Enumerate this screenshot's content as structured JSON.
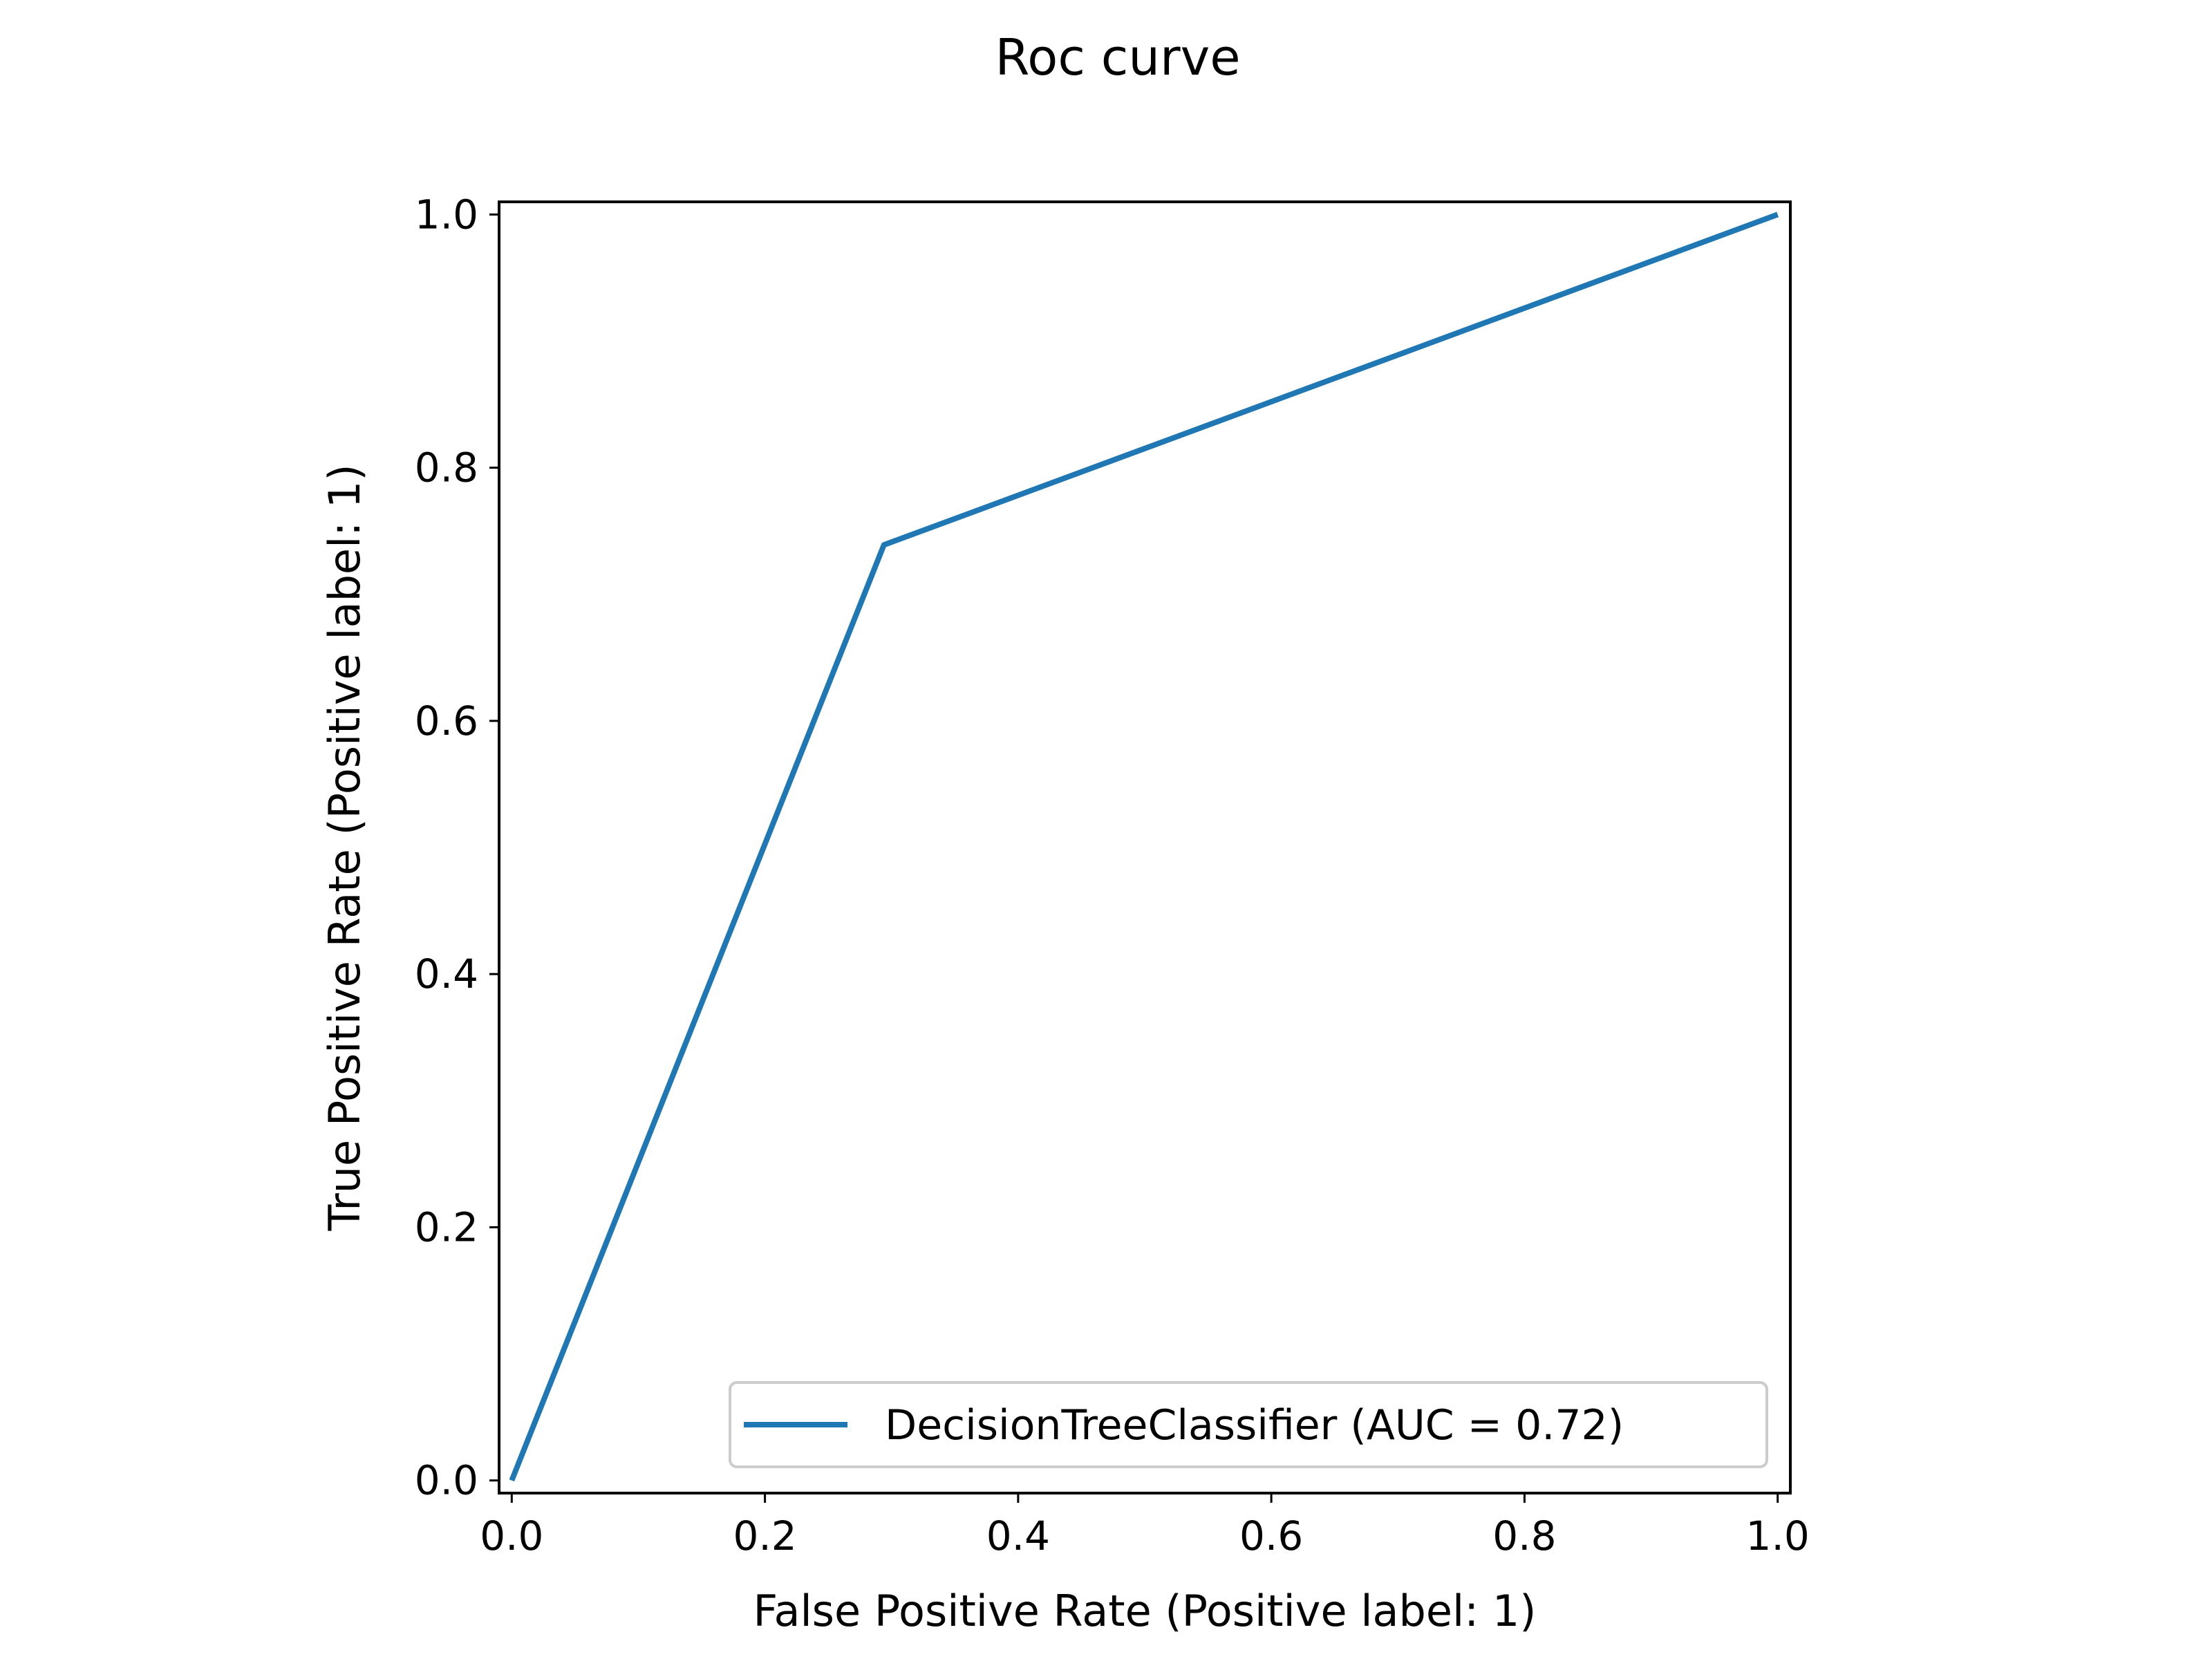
{
  "chart_data": {
    "type": "line",
    "title": "Roc curve",
    "xlabel": "False Positive Rate (Positive label: 1)",
    "ylabel": "True Positive Rate (Positive label: 1)",
    "xlim": [
      -0.01,
      1.01
    ],
    "ylim": [
      -0.01,
      1.01
    ],
    "xticks": [
      0.0,
      0.2,
      0.4,
      0.6,
      0.8,
      1.0
    ],
    "yticks": [
      0.0,
      0.2,
      0.4,
      0.6,
      0.8,
      1.0
    ],
    "xtick_labels": [
      "0.0",
      "0.2",
      "0.4",
      "0.6",
      "0.8",
      "1.0"
    ],
    "ytick_labels": [
      "0.0",
      "0.2",
      "0.4",
      "0.6",
      "0.8",
      "1.0"
    ],
    "grid": false,
    "legend_position": "lower-right",
    "series": [
      {
        "name": "DecisionTreeClassifier (AUC = 0.72)",
        "color": "#1f77b4",
        "x": [
          0.0,
          0.294,
          1.0
        ],
        "y": [
          0.0,
          0.739,
          1.0
        ]
      }
    ]
  }
}
